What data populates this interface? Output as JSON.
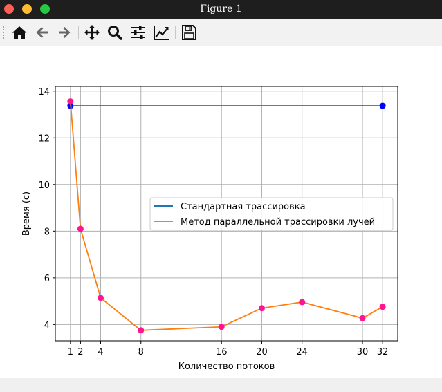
{
  "window": {
    "title": "Figure 1"
  },
  "toolbar": {
    "buttons": [
      {
        "name": "home-button",
        "icon": "home-icon"
      },
      {
        "name": "back-button",
        "icon": "arrow-left-icon"
      },
      {
        "name": "forward-button",
        "icon": "arrow-right-icon"
      },
      {
        "name": "pan-button",
        "icon": "move-icon"
      },
      {
        "name": "zoom-button",
        "icon": "magnifier-icon"
      },
      {
        "name": "subplots-button",
        "icon": "sliders-icon"
      },
      {
        "name": "edit-axis-button",
        "icon": "line-chart-icon"
      },
      {
        "name": "save-button",
        "icon": "floppy-disk-icon"
      }
    ]
  },
  "chart_data": {
    "type": "line",
    "xlabel": "Количество потоков",
    "ylabel": "Время (с)",
    "xticks": [
      1,
      2,
      4,
      8,
      16,
      20,
      24,
      30,
      32
    ],
    "yticks": [
      4,
      6,
      8,
      10,
      12,
      14
    ],
    "xlim": [
      -0.5,
      33.5
    ],
    "ylim": [
      3.3,
      14.2
    ],
    "grid": true,
    "legend_position": "center-right",
    "series": [
      {
        "name": "Стандартная трассировка",
        "color": "#1f77b4",
        "marker_color": "#0000ff",
        "x": [
          1,
          32
        ],
        "y": [
          13.37,
          13.37
        ]
      },
      {
        "name": "Метод параллельной трассировки лучей",
        "color": "#ff7f0e",
        "marker_color": "#ff1493",
        "x": [
          1,
          2,
          4,
          8,
          16,
          20,
          24,
          30,
          32
        ],
        "y": [
          13.56,
          8.1,
          5.14,
          3.75,
          3.9,
          4.7,
          4.96,
          4.27,
          4.76
        ]
      }
    ]
  }
}
